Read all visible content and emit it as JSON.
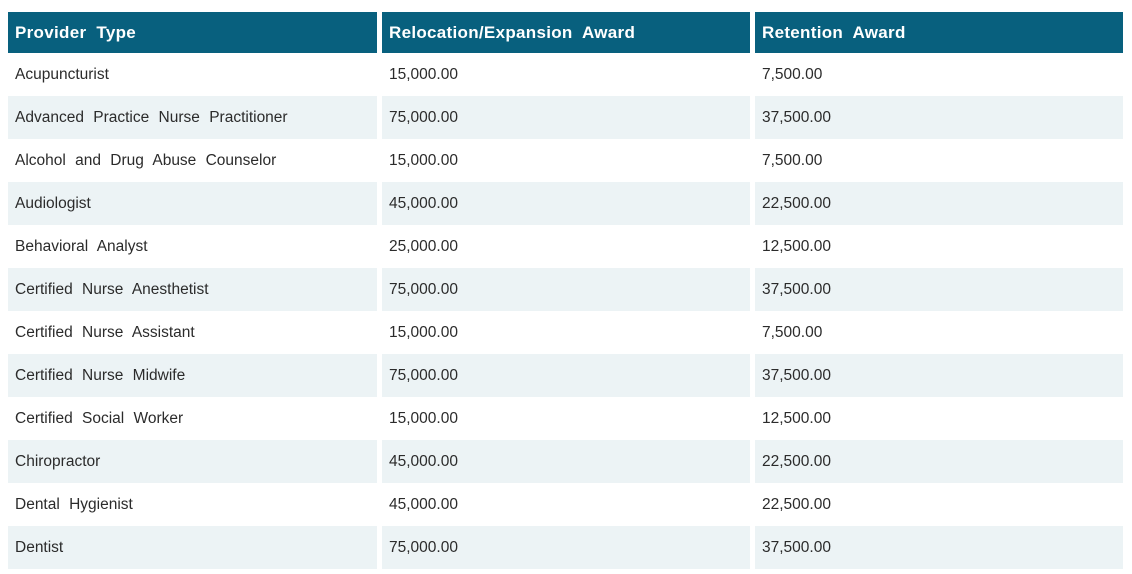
{
  "colors": {
    "header_bg": "#08607e",
    "header_text": "#ffffff",
    "row_alt_bg": "#ecf3f5",
    "body_text": "#2b2b2b"
  },
  "table": {
    "columns": [
      {
        "key": "provider_type",
        "label": "Provider Type"
      },
      {
        "key": "relocation_award",
        "label": "Relocation/Expansion Award"
      },
      {
        "key": "retention_award",
        "label": "Retention Award"
      }
    ],
    "rows": [
      {
        "provider_type": "Acupuncturist",
        "relocation_award": "15,000.00",
        "retention_award": "7,500.00"
      },
      {
        "provider_type": "Advanced Practice Nurse Practitioner",
        "relocation_award": "75,000.00",
        "retention_award": "37,500.00"
      },
      {
        "provider_type": "Alcohol and Drug Abuse Counselor",
        "relocation_award": "15,000.00",
        "retention_award": "7,500.00"
      },
      {
        "provider_type": "Audiologist",
        "relocation_award": "45,000.00",
        "retention_award": "22,500.00"
      },
      {
        "provider_type": "Behavioral Analyst",
        "relocation_award": "25,000.00",
        "retention_award": "12,500.00"
      },
      {
        "provider_type": "Certified Nurse Anesthetist",
        "relocation_award": "75,000.00",
        "retention_award": "37,500.00"
      },
      {
        "provider_type": "Certified Nurse Assistant",
        "relocation_award": "15,000.00",
        "retention_award": "7,500.00"
      },
      {
        "provider_type": "Certified Nurse Midwife",
        "relocation_award": "75,000.00",
        "retention_award": "37,500.00"
      },
      {
        "provider_type": "Certified Social Worker",
        "relocation_award": "15,000.00",
        "retention_award": "12,500.00"
      },
      {
        "provider_type": "Chiropractor",
        "relocation_award": "45,000.00",
        "retention_award": "22,500.00"
      },
      {
        "provider_type": "Dental Hygienist",
        "relocation_award": "45,000.00",
        "retention_award": "22,500.00"
      },
      {
        "provider_type": "Dentist",
        "relocation_award": "75,000.00",
        "retention_award": "37,500.00"
      }
    ]
  }
}
